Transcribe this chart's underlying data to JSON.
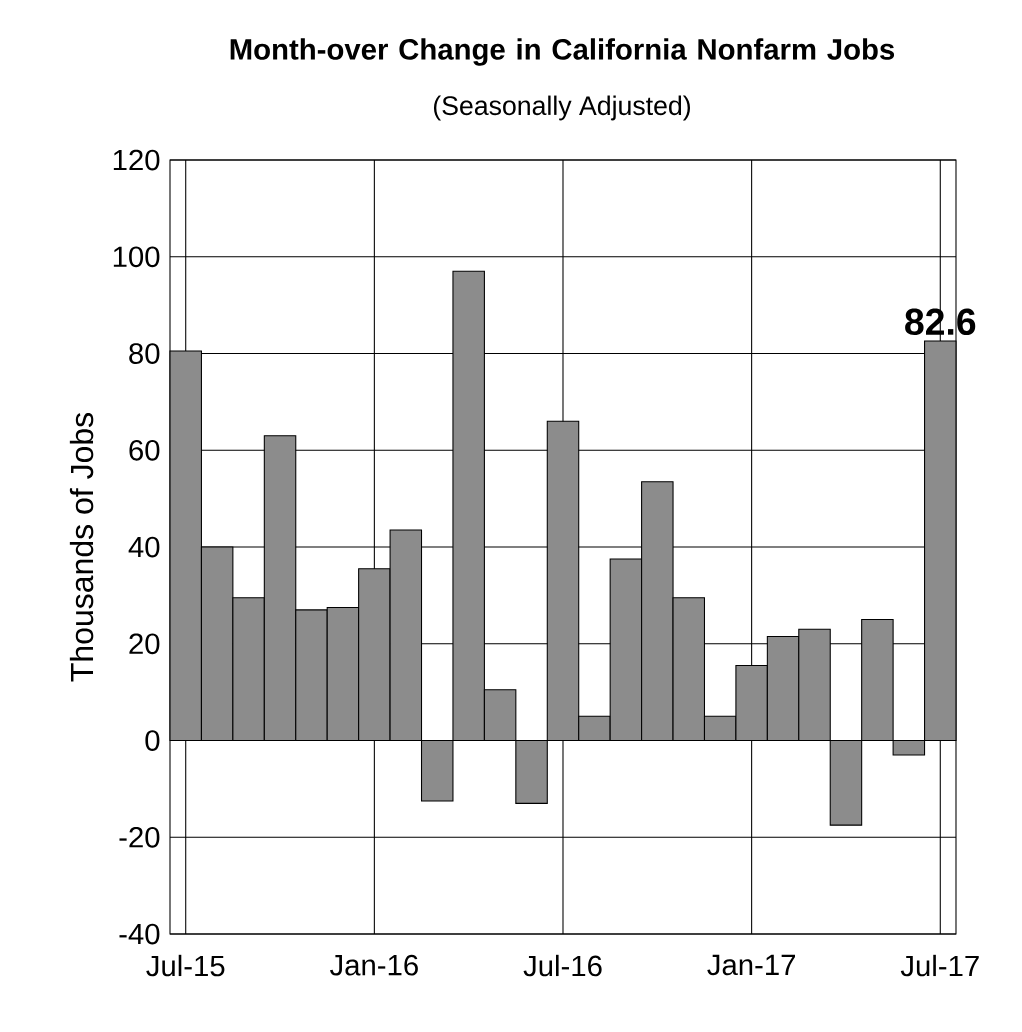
{
  "chart_data": {
    "type": "bar",
    "title": "Month-over Change in California Nonfarm Jobs",
    "subtitle": "(Seasonally Adjusted)",
    "ylabel": "Thousands of Jobs",
    "categories": [
      "Jul-15",
      null,
      null,
      null,
      null,
      null,
      "Jan-16",
      null,
      null,
      null,
      null,
      null,
      "Jul-16",
      null,
      null,
      null,
      null,
      null,
      "Jan-17",
      null,
      null,
      null,
      null,
      null,
      "Jul-17"
    ],
    "values": [
      80.5,
      40,
      29.5,
      63,
      27,
      27.5,
      35.5,
      43.5,
      -12.5,
      97,
      10.5,
      -13,
      66,
      5,
      37.5,
      53.5,
      29.5,
      5,
      15.5,
      21.5,
      23,
      -17.5,
      25,
      -3,
      82.6
    ],
    "value_labels": [
      null,
      null,
      null,
      null,
      null,
      null,
      null,
      null,
      null,
      null,
      null,
      null,
      null,
      null,
      null,
      null,
      null,
      null,
      null,
      null,
      null,
      null,
      null,
      null,
      "82.6"
    ],
    "color": "#8c8c8c",
    "ylim": [
      -40,
      120
    ],
    "yticks": [
      -40,
      -20,
      0,
      20,
      40,
      60,
      80,
      100,
      120
    ],
    "grid": true
  }
}
